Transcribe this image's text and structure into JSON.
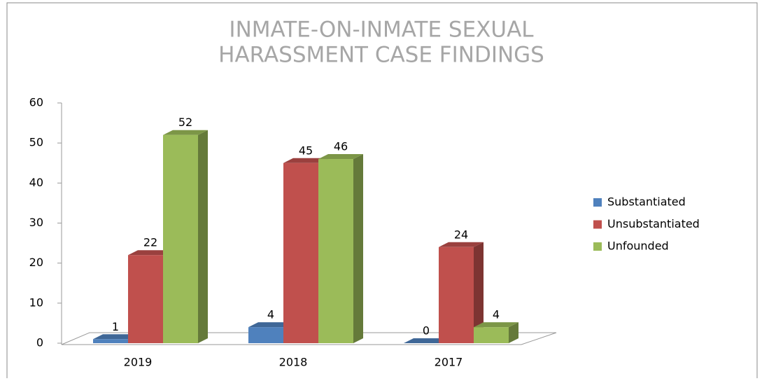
{
  "chart_data": {
    "type": "bar",
    "title": [
      "INMATE-ON-INMATE SEXUAL",
      "HARASSMENT CASE FINDINGS"
    ],
    "categories": [
      "2019",
      "2018",
      "2017"
    ],
    "series": [
      {
        "name": "Substantiated",
        "color": "#4f81bd",
        "values": [
          1,
          4,
          0
        ]
      },
      {
        "name": "Unsubstantiated",
        "color": "#c0504d",
        "values": [
          22,
          45,
          24
        ]
      },
      {
        "name": "Unfounded",
        "color": "#9bbb59",
        "values": [
          52,
          46,
          4
        ]
      }
    ],
    "ylim": [
      0,
      60
    ],
    "yticks": [
      0,
      10,
      20,
      30,
      40,
      50,
      60
    ],
    "legend": "right"
  }
}
